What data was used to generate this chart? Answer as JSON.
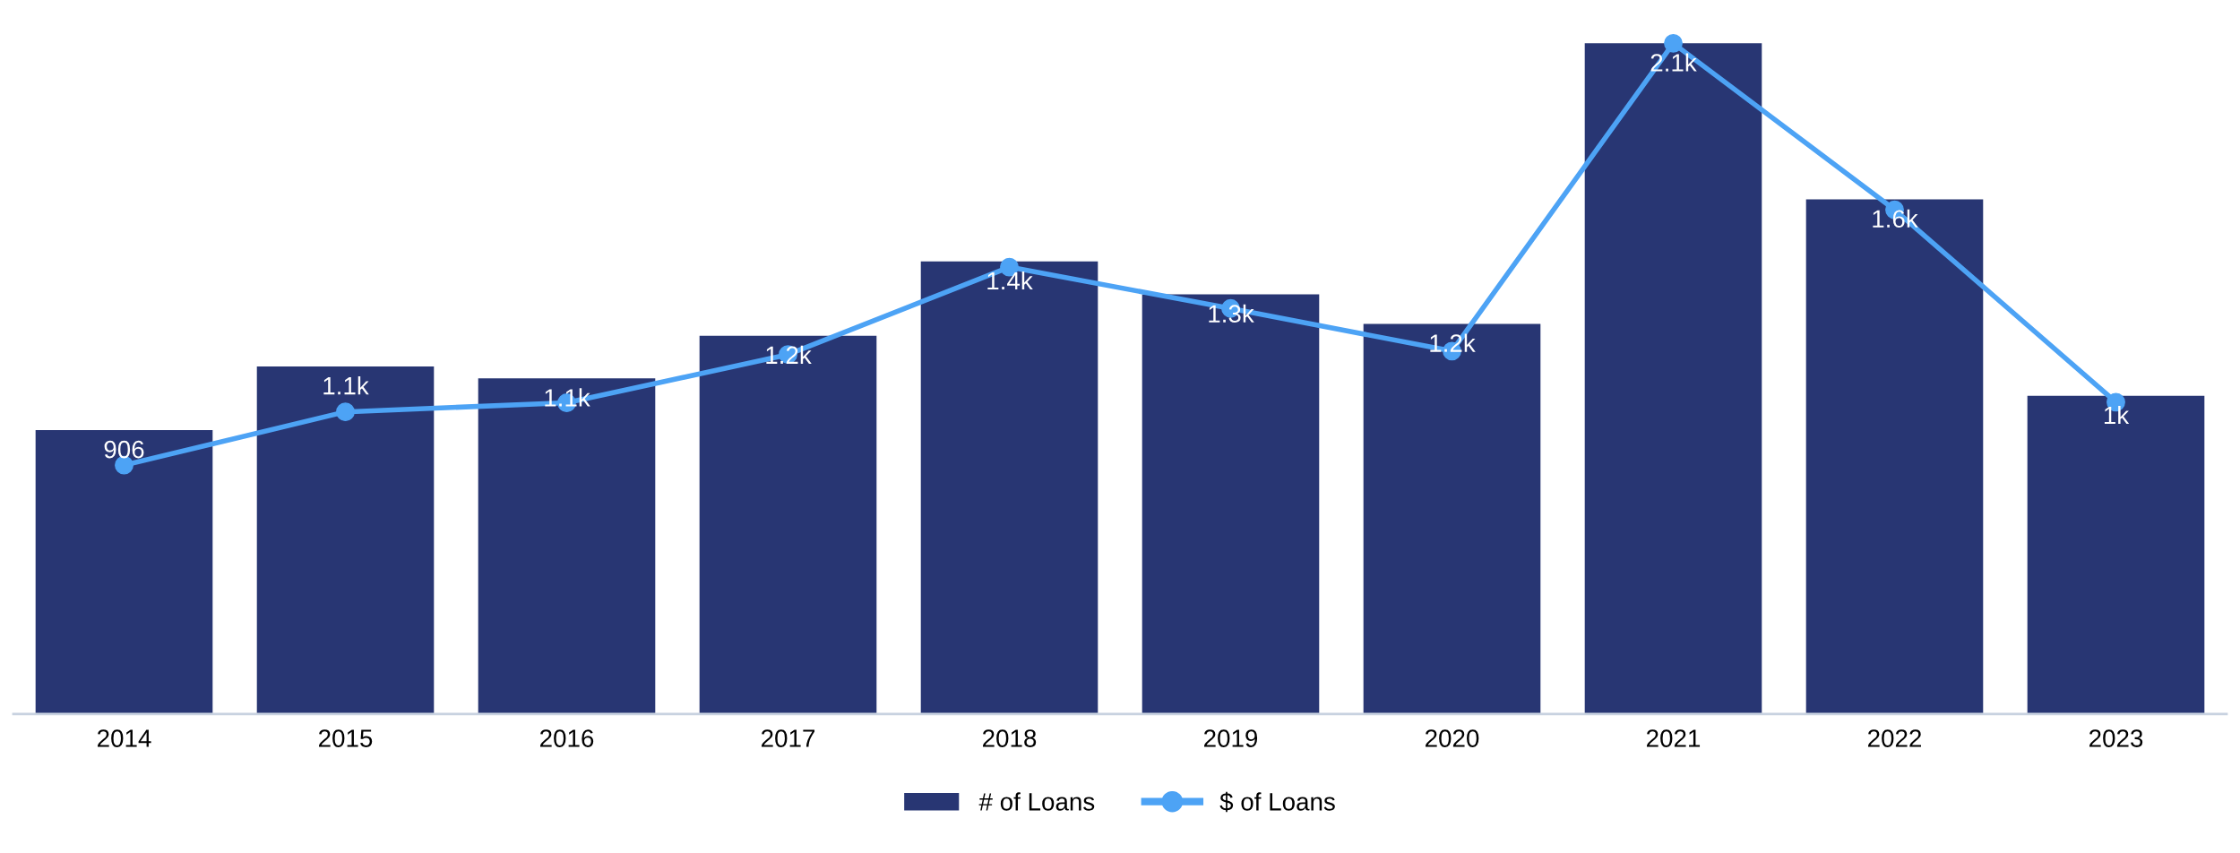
{
  "chart_data": {
    "type": "bar",
    "categories": [
      "2014",
      "2015",
      "2016",
      "2017",
      "2018",
      "2019",
      "2020",
      "2021",
      "2022",
      "2023"
    ],
    "series": [
      {
        "name": "# of Loans",
        "color": "#283673",
        "values": [
          906,
          1109,
          1071,
          1207,
          1444,
          1339,
          1245,
          2140,
          1642,
          1015
        ],
        "value_labels": [
          "906",
          "1.1k",
          "1.1k",
          "1.2k",
          "1.4k",
          "1.3k",
          "1.2k",
          "2.1k",
          "1.6k",
          "1k"
        ]
      },
      {
        "name": "$ of Loans",
        "type": "line",
        "color": "#4da3f5",
        "marker": "circle",
        "values": [
          794,
          964,
          993,
          1147,
          1426,
          1294,
          1158,
          2140,
          1609,
          995
        ]
      }
    ],
    "legend": "bottom",
    "grid": false
  }
}
